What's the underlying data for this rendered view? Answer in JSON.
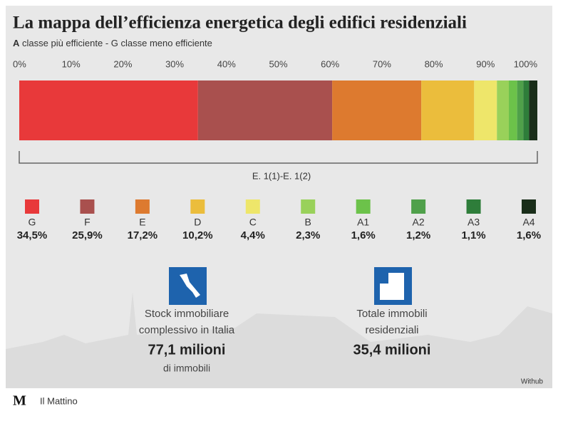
{
  "chart_data": {
    "type": "bar",
    "stacked": true,
    "orientation": "horizontal",
    "title": "La mappa dell’efficienza energetica degli edifici residenziali",
    "subtitle_bold": "A",
    "subtitle": "classe più efficiente - G classe meno efficiente",
    "categories": [
      null
    ],
    "xlim": [
      0,
      100
    ],
    "xticks": [
      {
        "value": 0,
        "label": "0%"
      },
      {
        "value": 10,
        "label": "10%"
      },
      {
        "value": 20,
        "label": "20%"
      },
      {
        "value": 30,
        "label": "30%"
      },
      {
        "value": 40,
        "label": "40%"
      },
      {
        "value": 50,
        "label": "50%"
      },
      {
        "value": 60,
        "label": "60%"
      },
      {
        "value": 70,
        "label": "70%"
      },
      {
        "value": 80,
        "label": "80%"
      },
      {
        "value": 90,
        "label": "90%"
      },
      {
        "value": 100,
        "label": "100%"
      }
    ],
    "annotation": "E. 1(1)-E. 1(2)",
    "series": [
      {
        "name": "G",
        "color": "#e8393a",
        "values": [
          34.5
        ],
        "value_labels": [
          "34,5%"
        ]
      },
      {
        "name": "F",
        "color": "#a9504e",
        "values": [
          25.9
        ],
        "value_labels": [
          "25,9%"
        ]
      },
      {
        "name": "E",
        "color": "#dd7a2f",
        "values": [
          17.2
        ],
        "value_labels": [
          "17,2%"
        ]
      },
      {
        "name": "D",
        "color": "#ebbd3c",
        "values": [
          10.2
        ],
        "value_labels": [
          "10,2%"
        ]
      },
      {
        "name": "C",
        "color": "#eee66a",
        "values": [
          4.4
        ],
        "value_labels": [
          "4,4%"
        ]
      },
      {
        "name": "B",
        "color": "#99d15a",
        "values": [
          2.3
        ],
        "value_labels": [
          "2,3%"
        ]
      },
      {
        "name": "A1",
        "color": "#6cc24a",
        "values": [
          1.6
        ],
        "value_labels": [
          "1,6%"
        ]
      },
      {
        "name": "A2",
        "color": "#4fa04a",
        "values": [
          1.2
        ],
        "value_labels": [
          "1,2%"
        ]
      },
      {
        "name": "A3",
        "color": "#2e7d3a",
        "values": [
          1.1
        ],
        "value_labels": [
          "1,1%"
        ]
      },
      {
        "name": "A4",
        "color": "#1a2e1a",
        "values": [
          1.6
        ],
        "value_labels": [
          "1,6%"
        ]
      }
    ],
    "stats": [
      {
        "lines": [
          "Stock immobiliare",
          "complessivo in Italia"
        ],
        "value": "77,1 milioni",
        "unit": "di immobili"
      },
      {
        "lines": [
          "Totale immobili",
          "residenziali"
        ],
        "value": "35,4 milioni"
      }
    ],
    "source": "Withub"
  },
  "footer": {
    "logo": "M",
    "name": "Il Mattino"
  }
}
